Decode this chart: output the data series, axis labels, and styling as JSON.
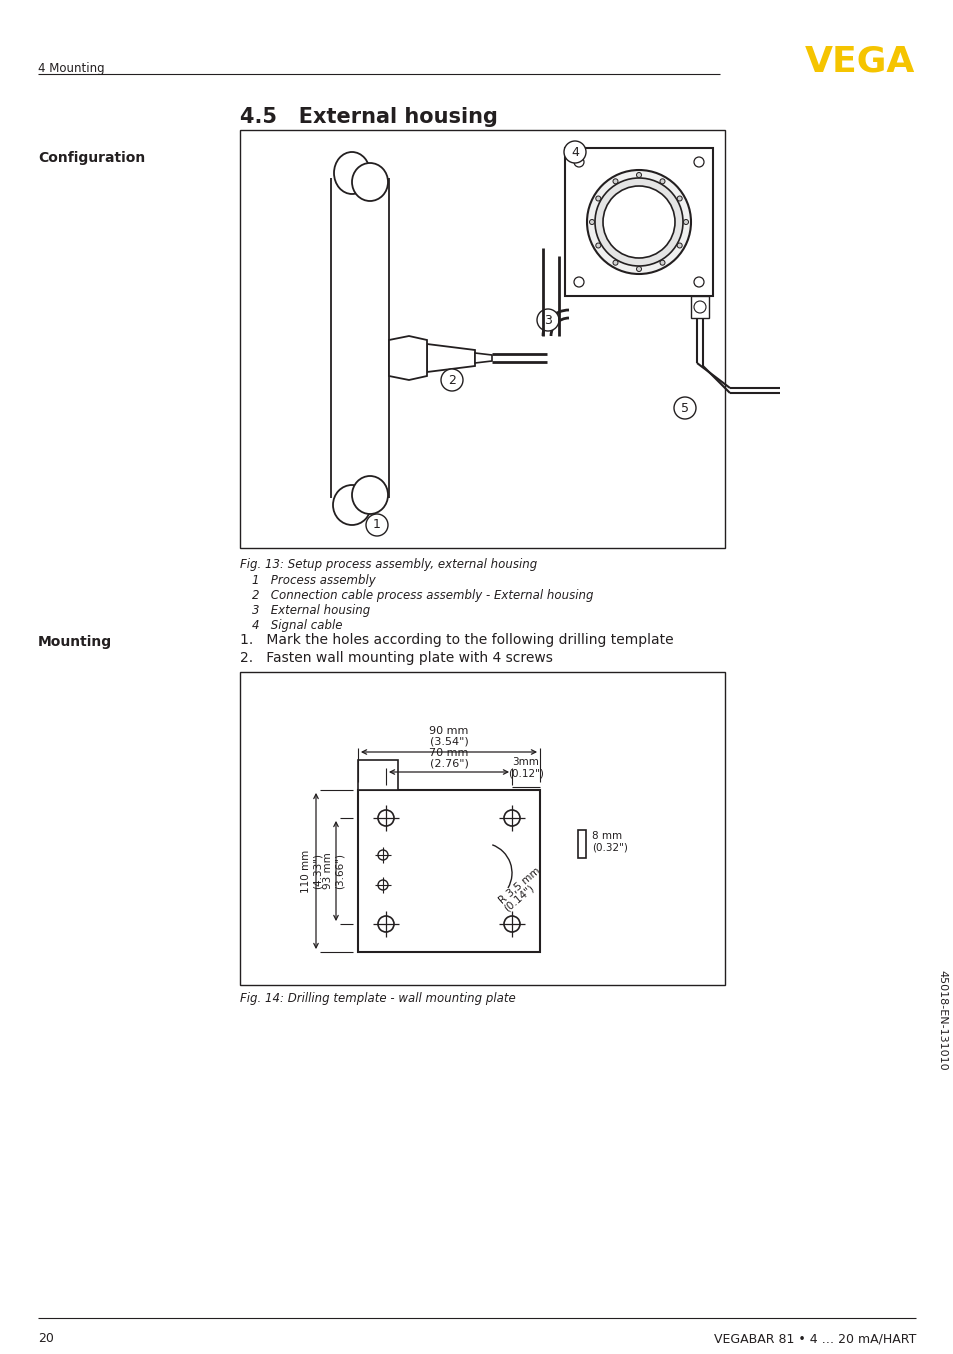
{
  "page_header_left": "4 Mounting",
  "vega_logo": "VEGA",
  "section_title": "4.5   External housing",
  "config_label": "Configuration",
  "mounting_label": "Mounting",
  "fig13_caption": "Fig. 13: Setup process assembly, external housing",
  "fig13_items": [
    "1   Process assembly",
    "2   Connection cable process assembly - External housing",
    "3   External housing",
    "4   Signal cable"
  ],
  "mounting_steps": [
    "1.   Mark the holes according to the following drilling template",
    "2.   Fasten wall mounting plate with 4 screws"
  ],
  "fig14_caption": "Fig. 14: Drilling template - wall mounting plate",
  "dim_90mm": "90 mm",
  "dim_90in": "(3.54\")",
  "dim_70mm": "70 mm",
  "dim_70in": "(2.76\")",
  "dim_3mm": "3mm",
  "dim_3in": "(0.12\")",
  "dim_8mm": "8 mm",
  "dim_8in": "(0.32\")",
  "dim_r35mm": "R 3,5 mm",
  "dim_r35in": "(0.14\")",
  "dim_110mm": "110 mm",
  "dim_110in": "(4.33\")",
  "dim_93mm": "93 mm",
  "dim_93in": "(3.66\")",
  "footer_page": "20",
  "footer_right": "VEGABAR 81 • 4 … 20 mA/HART",
  "sidebar_text": "45018-EN-131010",
  "bg_color": "#ffffff",
  "text_color": "#231f20",
  "yellow_color": "#f5c400",
  "line_color": "#231f20"
}
